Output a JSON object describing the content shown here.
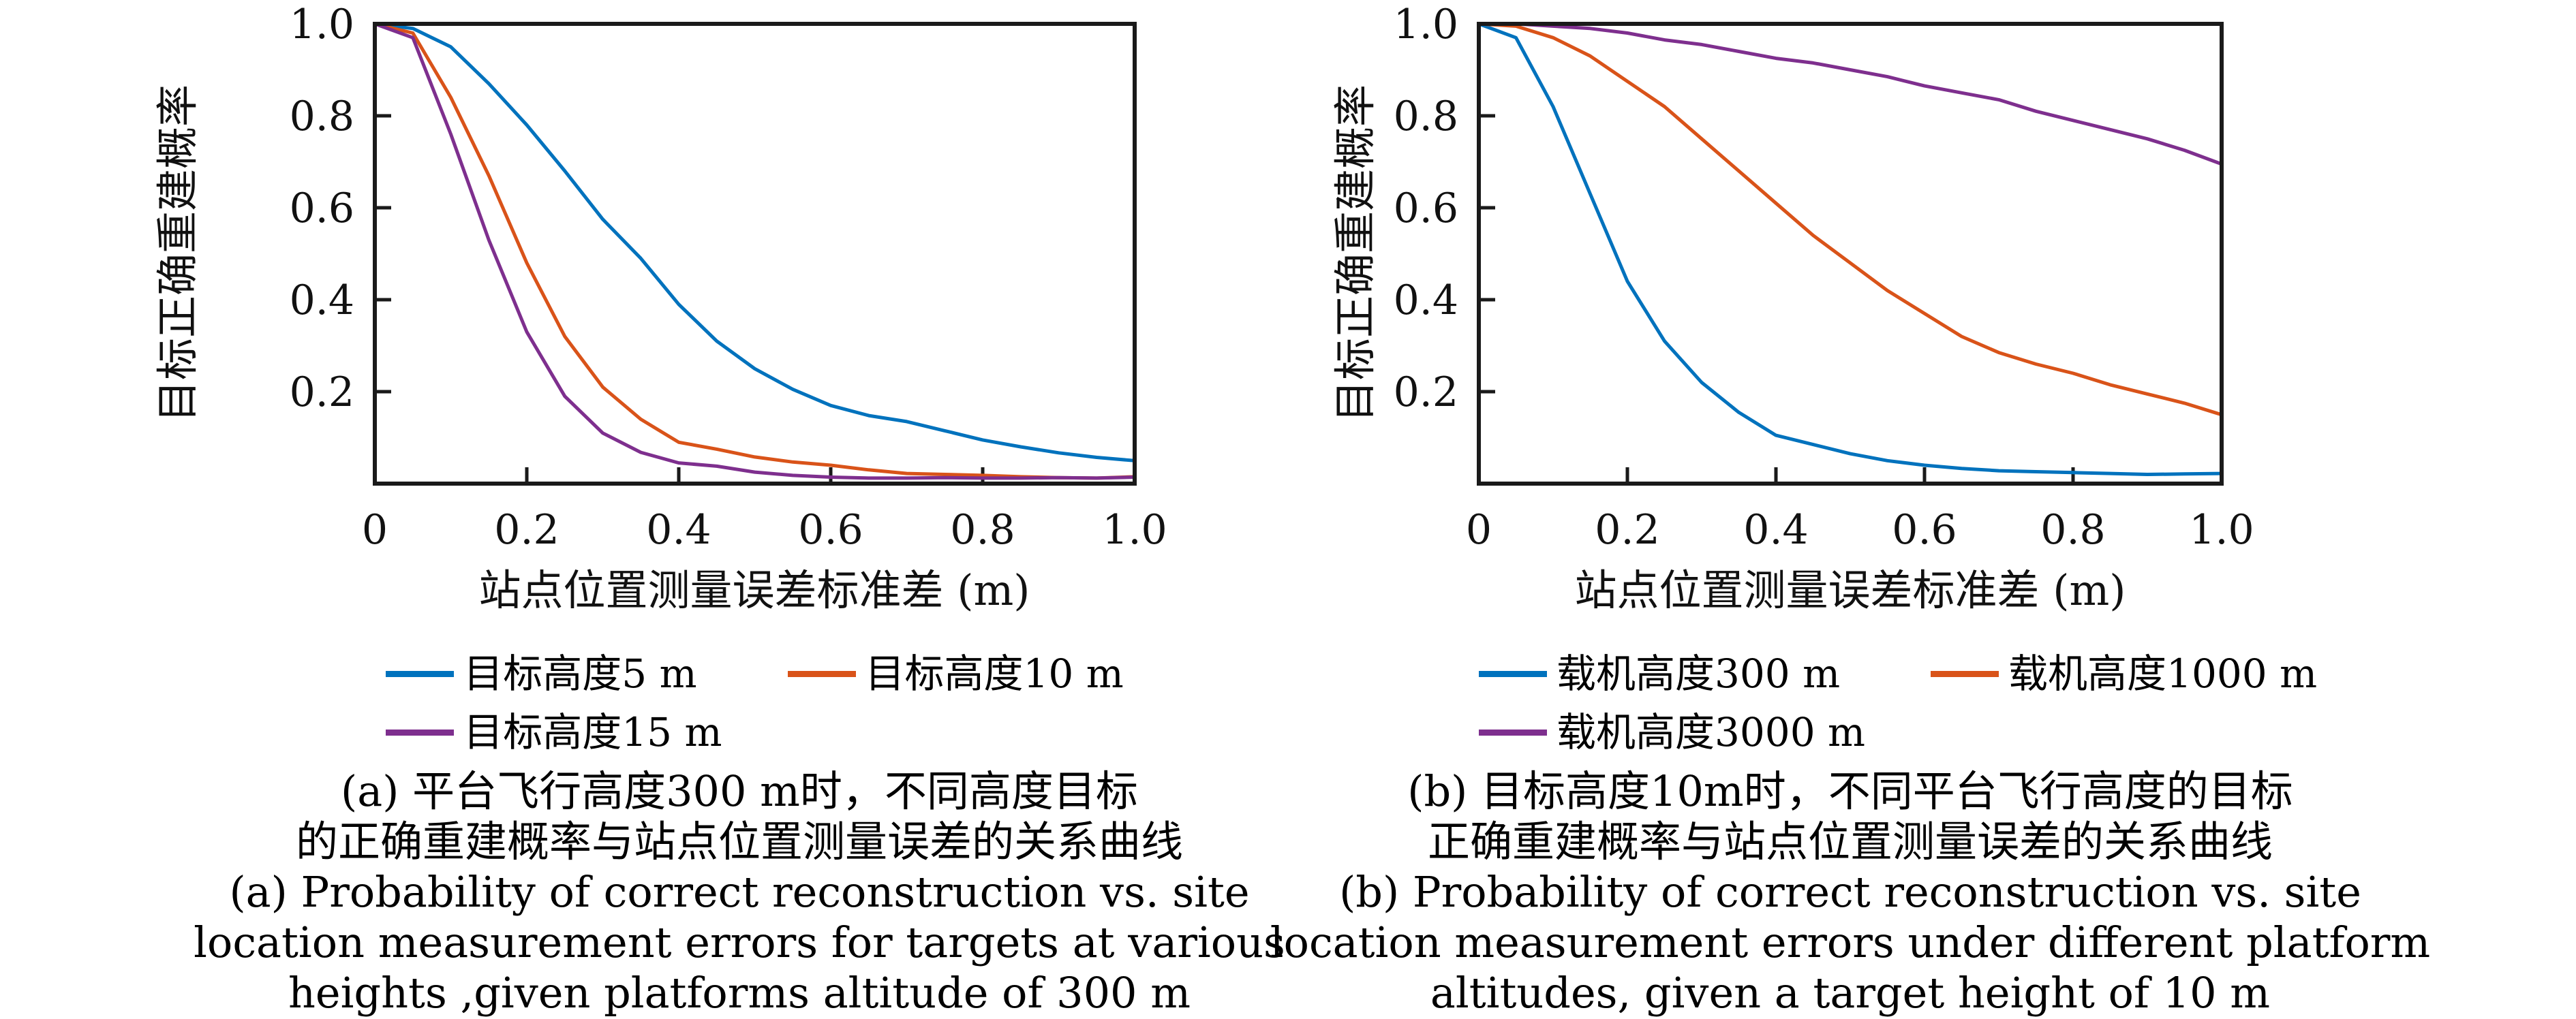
{
  "figure": {
    "panels": [
      {
        "id": "a",
        "caption_lines": [
          "(a) 平台飞行高度300 m时，不同高度目标",
          "的正确重建概率与站点位置测量误差的关系曲线",
          "(a) Probability of correct reconstruction vs. site",
          "location measurement errors for targets at various",
          "heights ,given  platforms altitude of 300 m"
        ]
      },
      {
        "id": "b",
        "caption_lines": [
          "(b) 目标高度10m时，不同平台飞行高度的目标",
          "正确重建概率与站点位置测量误差的关系曲线",
          "(b) Probability of correct reconstruction vs. site",
          "location measurement errors under different platform",
          "altitudes, given a target height of 10 m"
        ]
      }
    ]
  },
  "chart_data": [
    {
      "type": "line",
      "title": "",
      "xlabel": "站点位置测量误差标准差 (m)",
      "ylabel": "目标正确重建概率",
      "xlim": [
        0,
        1
      ],
      "ylim": [
        0,
        1
      ],
      "grid": false,
      "legend_position": "below",
      "xticks": [
        0,
        0.2,
        0.4,
        0.6,
        0.8,
        1.0
      ],
      "xtick_labels": [
        "0",
        "0.2",
        "0.4",
        "0.6",
        "0.8",
        "1.0"
      ],
      "yticks": [
        0.2,
        0.4,
        0.6,
        0.8,
        1.0
      ],
      "ytick_labels": [
        "0.2",
        "0.4",
        "0.6",
        "0.8",
        "1.0"
      ],
      "x": [
        0,
        0.05,
        0.1,
        0.15,
        0.2,
        0.25,
        0.3,
        0.35,
        0.4,
        0.45,
        0.5,
        0.55,
        0.6,
        0.65,
        0.7,
        0.75,
        0.8,
        0.85,
        0.9,
        0.95,
        1.0
      ],
      "series": [
        {
          "name": "目标高度5 m",
          "color": "#0072BD",
          "values": [
            1.0,
            0.99,
            0.95,
            0.87,
            0.78,
            0.68,
            0.575,
            0.49,
            0.39,
            0.31,
            0.25,
            0.205,
            0.17,
            0.148,
            0.135,
            0.115,
            0.095,
            0.08,
            0.067,
            0.057,
            0.05
          ]
        },
        {
          "name": "目标高度10 m",
          "color": "#D95319",
          "values": [
            1.0,
            0.98,
            0.84,
            0.67,
            0.48,
            0.32,
            0.21,
            0.14,
            0.09,
            0.075,
            0.058,
            0.047,
            0.04,
            0.03,
            0.022,
            0.02,
            0.018,
            0.015,
            0.013,
            0.012,
            0.015
          ]
        },
        {
          "name": "目标高度15 m",
          "color": "#7E2F8E",
          "values": [
            1.0,
            0.97,
            0.76,
            0.53,
            0.33,
            0.19,
            0.11,
            0.068,
            0.045,
            0.038,
            0.025,
            0.018,
            0.014,
            0.012,
            0.012,
            0.013,
            0.012,
            0.012,
            0.013,
            0.012,
            0.014
          ]
        }
      ]
    },
    {
      "type": "line",
      "title": "",
      "xlabel": "站点位置测量误差标准差 (m)",
      "ylabel": "目标正确重建概率",
      "xlim": [
        0,
        1
      ],
      "ylim": [
        0,
        1
      ],
      "grid": false,
      "legend_position": "below",
      "xticks": [
        0,
        0.2,
        0.4,
        0.6,
        0.8,
        1.0
      ],
      "xtick_labels": [
        "0",
        "0.2",
        "0.4",
        "0.6",
        "0.8",
        "1.0"
      ],
      "yticks": [
        0.2,
        0.4,
        0.6,
        0.8,
        1.0
      ],
      "ytick_labels": [
        "0.2",
        "0.4",
        "0.6",
        "0.8",
        "1.0"
      ],
      "x": [
        0,
        0.05,
        0.1,
        0.15,
        0.2,
        0.25,
        0.3,
        0.35,
        0.4,
        0.45,
        0.5,
        0.55,
        0.6,
        0.65,
        0.7,
        0.75,
        0.8,
        0.85,
        0.9,
        0.95,
        1.0
      ],
      "series": [
        {
          "name": "载机高度300 m",
          "color": "#0072BD",
          "values": [
            1.0,
            0.97,
            0.82,
            0.63,
            0.44,
            0.31,
            0.22,
            0.155,
            0.105,
            0.085,
            0.065,
            0.05,
            0.04,
            0.033,
            0.028,
            0.026,
            0.024,
            0.022,
            0.02,
            0.021,
            0.022
          ]
        },
        {
          "name": "载机高度1000 m",
          "color": "#D95319",
          "values": [
            1.0,
            0.995,
            0.97,
            0.93,
            0.875,
            0.82,
            0.75,
            0.68,
            0.61,
            0.54,
            0.48,
            0.42,
            0.37,
            0.32,
            0.285,
            0.26,
            0.24,
            0.215,
            0.195,
            0.175,
            0.15
          ]
        },
        {
          "name": "载机高度3000 m",
          "color": "#7E2F8E",
          "values": [
            1.0,
            1.0,
            0.995,
            0.99,
            0.98,
            0.965,
            0.955,
            0.94,
            0.925,
            0.915,
            0.9,
            0.885,
            0.865,
            0.85,
            0.835,
            0.81,
            0.79,
            0.77,
            0.75,
            0.725,
            0.695
          ]
        }
      ]
    }
  ]
}
